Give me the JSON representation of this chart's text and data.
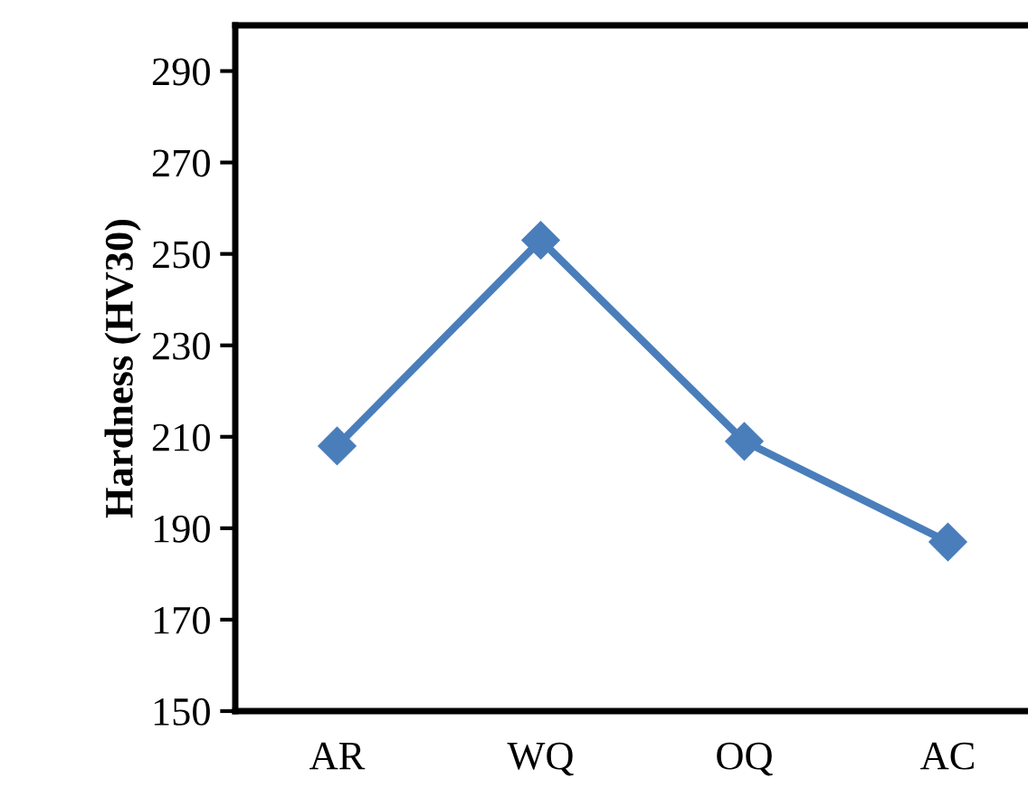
{
  "chart_data": {
    "type": "line",
    "ylabel": "Hardness (HV30)",
    "categories": [
      "AR",
      "WQ",
      "OQ",
      "AC"
    ],
    "series": [
      {
        "color": "#4a7ebb",
        "values": [
          208,
          253,
          209,
          187
        ]
      }
    ],
    "ylim": [
      150,
      300
    ],
    "yticks": [
      150,
      170,
      190,
      210,
      230,
      250,
      270,
      290
    ],
    "marker": "diamond",
    "line_style": "solid"
  }
}
